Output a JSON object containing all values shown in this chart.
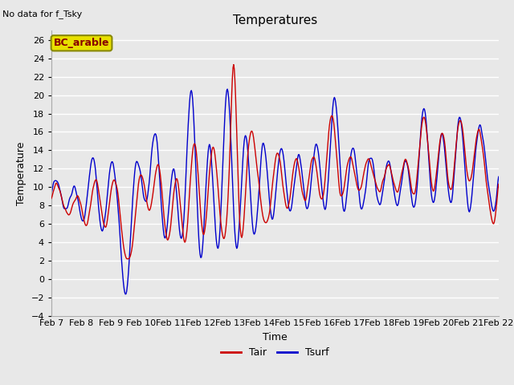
{
  "title": "Temperatures",
  "xlabel": "Time",
  "ylabel": "Temperature",
  "annotation": "No data for f_Tsky",
  "legend_label": "BC_arable",
  "ylim": [
    -4,
    27
  ],
  "yticks": [
    -4,
    -2,
    0,
    2,
    4,
    6,
    8,
    10,
    12,
    14,
    16,
    18,
    20,
    22,
    24,
    26
  ],
  "xtick_labels": [
    "Feb 7",
    "Feb 8",
    "Feb 9",
    "Feb 10",
    "Feb 11",
    "Feb 12",
    "Feb 13",
    "Feb 14",
    "Feb 15",
    "Feb 16",
    "Feb 17",
    "Feb 18",
    "Feb 19",
    "Feb 20",
    "Feb 21",
    "Feb 22"
  ],
  "line_Tair_color": "#cc0000",
  "line_Tsurf_color": "#0000cc",
  "plot_bg_color": "#e8e8e8",
  "grid_color": "#ffffff",
  "legend_box_facecolor": "#e8e000",
  "legend_box_edgecolor": "#888800",
  "legend_text_color": "#880000",
  "title_fontsize": 11,
  "axis_label_fontsize": 9,
  "tick_fontsize": 8,
  "annotation_fontsize": 8,
  "figsize": [
    6.4,
    4.8
  ],
  "dpi": 100
}
